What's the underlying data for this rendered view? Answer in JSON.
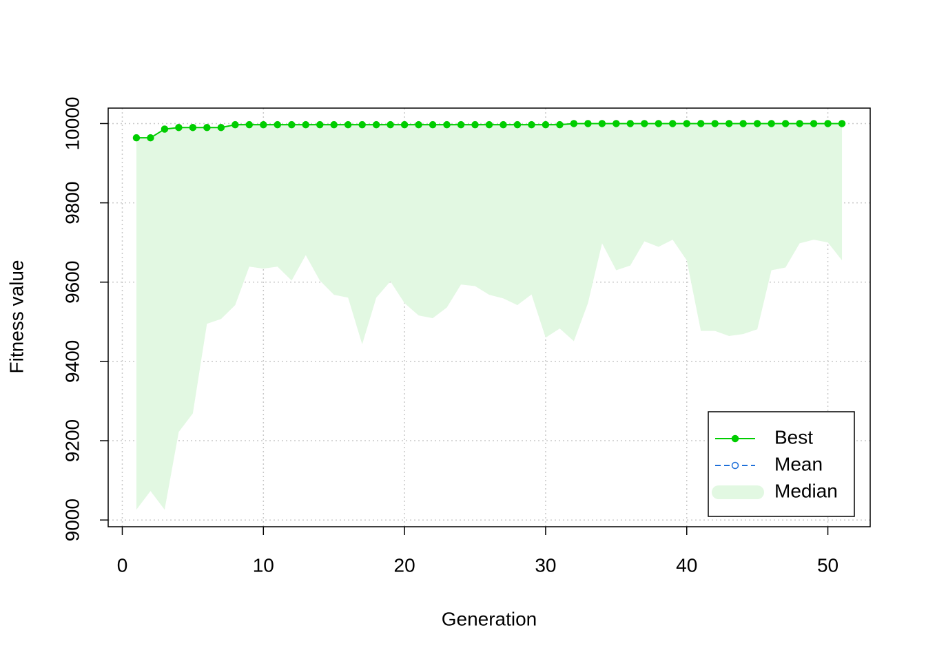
{
  "chart_data": {
    "type": "line",
    "xlabel": "Generation",
    "ylabel": "Fitness value",
    "x": [
      1,
      2,
      3,
      4,
      5,
      6,
      7,
      8,
      9,
      10,
      11,
      12,
      13,
      14,
      15,
      16,
      17,
      18,
      19,
      20,
      21,
      22,
      23,
      24,
      25,
      26,
      27,
      28,
      29,
      30,
      31,
      32,
      33,
      34,
      35,
      36,
      37,
      38,
      39,
      40,
      41,
      42,
      43,
      44,
      45,
      46,
      47,
      48,
      49,
      50,
      51
    ],
    "series": [
      {
        "name": "Best",
        "color": "#00cd00",
        "values": [
          9964,
          9964,
          9986,
          9990,
          9990,
          9990,
          9990,
          9997,
          9997,
          9997,
          9997,
          9997,
          9997,
          9997,
          9997,
          9997,
          9997,
          9997,
          9997,
          9997,
          9997,
          9997,
          9997,
          9997,
          9997,
          9997,
          9997,
          9997,
          9997,
          9997,
          9997,
          10000,
          10000,
          10000,
          10000,
          10000,
          10000,
          10000,
          10000,
          10000,
          10000,
          10000,
          10000,
          10000,
          10000,
          10000,
          10000,
          10000,
          10000,
          10000,
          10000
        ]
      },
      {
        "name": "Mean",
        "color": "#1e6fd9",
        "values": [
          null,
          null,
          null,
          null,
          null,
          null,
          null,
          null,
          null,
          null,
          null,
          null,
          null,
          null,
          null,
          null,
          null,
          null,
          null,
          null,
          null,
          null,
          null,
          null,
          null,
          null,
          null,
          null,
          null,
          null,
          null,
          null,
          null,
          null,
          null,
          null,
          null,
          null,
          null,
          null,
          null,
          null,
          null,
          null,
          null,
          null,
          null,
          null,
          null,
          null,
          null
        ]
      },
      {
        "name": "Median",
        "color": "#e2f8e2",
        "values": [
          9026,
          9073,
          9026,
          9222,
          9269,
          9495,
          9507,
          9542,
          9639,
          9634,
          9639,
          9604,
          9668,
          9604,
          9568,
          9561,
          9443,
          9561,
          9602,
          9547,
          9516,
          9509,
          9536,
          9594,
          9590,
          9568,
          9559,
          9542,
          9569,
          9460,
          9483,
          9451,
          9547,
          9698,
          9630,
          9642,
          9703,
          9689,
          9707,
          9655,
          9477,
          9477,
          9464,
          9469,
          9481,
          9630,
          9637,
          9698,
          9707,
          9700,
          9655
        ]
      }
    ],
    "xlim": [
      -1,
      53
    ],
    "xticks": [
      0,
      10,
      20,
      30,
      40,
      50
    ],
    "ylim": [
      8983,
      10039
    ],
    "yticks": [
      9000,
      9200,
      9400,
      9600,
      9800,
      10000
    ],
    "grid": true,
    "legend": "bottom-right"
  }
}
